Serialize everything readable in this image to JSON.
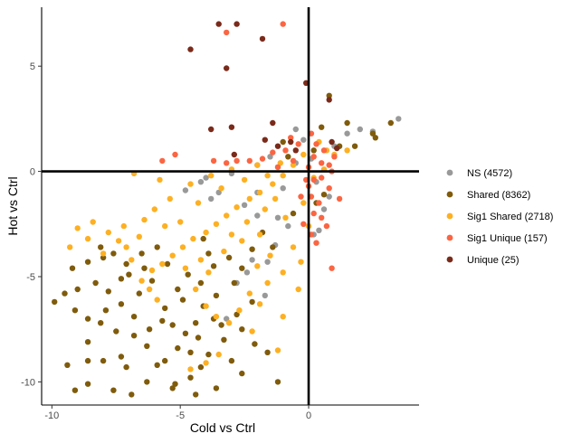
{
  "chart_data": {
    "type": "scatter",
    "xlabel": "Cold vs Ctrl",
    "ylabel": "Hot vs Ctrl",
    "xlim": [
      -10.4,
      4.3
    ],
    "ylim": [
      -11.1,
      7.8
    ],
    "x_ticks": [
      -10,
      -5,
      0
    ],
    "y_ticks": [
      -10,
      -5,
      0,
      5
    ],
    "x_tick_labels": [
      "-10",
      "-5",
      "0"
    ],
    "y_tick_labels": [
      "-10",
      "-5",
      "0",
      "5"
    ],
    "reference_lines": {
      "x": 0,
      "y": 0
    },
    "grid": false,
    "legend_position": "right",
    "series": [
      {
        "name": "NS (4572)",
        "color": "#999999",
        "points": [
          [
            3.5,
            2.5
          ],
          [
            2.5,
            1.9
          ],
          [
            2.0,
            2.0
          ],
          [
            1.5,
            1.8
          ],
          [
            1.0,
            1.2
          ],
          [
            -0.2,
            1.5
          ],
          [
            -0.5,
            2.0
          ],
          [
            0.1,
            0.6
          ],
          [
            0.3,
            -0.5
          ],
          [
            -0.5,
            0.4
          ],
          [
            -1.2,
            0.2
          ],
          [
            -1.5,
            0.7
          ],
          [
            -2.0,
            0.3
          ],
          [
            -3.0,
            -0.1
          ],
          [
            -4.0,
            -0.3
          ],
          [
            -4.8,
            -0.9
          ],
          [
            -3.5,
            -1.0
          ],
          [
            -2.5,
            -1.6
          ],
          [
            -2.0,
            -2.1
          ],
          [
            -1.2,
            -2.2
          ],
          [
            -0.8,
            -2.6
          ],
          [
            0.2,
            -3.0
          ],
          [
            0.4,
            -2.8
          ],
          [
            0.8,
            -1.2
          ],
          [
            -1.3,
            -3.5
          ],
          [
            -2.2,
            -4.2
          ],
          [
            -2.8,
            -5.3
          ],
          [
            -1.7,
            -5.9
          ],
          [
            -3.2,
            -7.0
          ],
          [
            -1.6,
            -4.3
          ],
          [
            -2.4,
            -4.8
          ],
          [
            -4.2,
            -0.5
          ],
          [
            -3.8,
            -1.3
          ],
          [
            -2.0,
            -1.0
          ],
          [
            -1.0,
            -0.8
          ],
          [
            0.6,
            -1.8
          ]
        ]
      },
      {
        "name": "Shared (8362)",
        "color": "#7f5b0c",
        "points": [
          [
            2.5,
            1.8
          ],
          [
            1.8,
            1.2
          ],
          [
            1.2,
            1.2
          ],
          [
            1.5,
            2.3
          ],
          [
            0.8,
            3.6
          ],
          [
            0.5,
            2.1
          ],
          [
            2.6,
            1.6
          ],
          [
            3.2,
            2.3
          ],
          [
            0.2,
            1.0
          ],
          [
            -1.0,
            1.4
          ],
          [
            -0.8,
            0.7
          ],
          [
            -1.8,
            -2.9
          ],
          [
            -2.2,
            -3.7
          ],
          [
            -2.6,
            -4.6
          ],
          [
            -2.9,
            -5.3
          ],
          [
            -3.6,
            -5.9
          ],
          [
            -3.4,
            -7.3
          ],
          [
            -2.6,
            -7.5
          ],
          [
            -3.3,
            -8.0
          ],
          [
            -3.9,
            -8.7
          ],
          [
            -4.2,
            -9.3
          ],
          [
            -4.6,
            -9.8
          ],
          [
            -5.3,
            -10.3
          ],
          [
            -6.3,
            -10.0
          ],
          [
            -7.6,
            -10.4
          ],
          [
            -8.6,
            -10.1
          ],
          [
            -9.4,
            -9.2
          ],
          [
            -8.6,
            -9.0
          ],
          [
            -8.0,
            -9.0
          ],
          [
            -7.3,
            -8.8
          ],
          [
            -6.3,
            -8.3
          ],
          [
            -5.6,
            -9.0
          ],
          [
            -5.1,
            -8.4
          ],
          [
            -4.8,
            -7.7
          ],
          [
            -5.3,
            -7.3
          ],
          [
            -4.4,
            -7.2
          ],
          [
            -4.1,
            -6.4
          ],
          [
            -5.6,
            -6.5
          ],
          [
            -6.1,
            -5.2
          ],
          [
            -6.6,
            -5.8
          ],
          [
            -7.1,
            -4.4
          ],
          [
            -7.6,
            -3.9
          ],
          [
            -8.0,
            -4.1
          ],
          [
            -8.6,
            -4.3
          ],
          [
            -9.2,
            -4.6
          ],
          [
            -9.0,
            -5.6
          ],
          [
            -9.5,
            -5.8
          ],
          [
            -8.3,
            -5.3
          ],
          [
            -7.8,
            -5.7
          ],
          [
            -7.3,
            -6.3
          ],
          [
            -6.8,
            -6.9
          ],
          [
            -6.2,
            -7.5
          ],
          [
            -6.8,
            -7.8
          ],
          [
            -7.5,
            -7.6
          ],
          [
            -8.1,
            -7.2
          ],
          [
            -8.6,
            -7.0
          ],
          [
            -9.1,
            -6.6
          ],
          [
            -8.6,
            -8.1
          ],
          [
            -4.7,
            -4.9
          ],
          [
            -4.2,
            -5.3
          ],
          [
            -3.9,
            -3.9
          ],
          [
            -3.1,
            -4.1
          ],
          [
            -5.5,
            -4.4
          ],
          [
            -4.9,
            -6.1
          ],
          [
            -5.1,
            -5.6
          ],
          [
            -4.6,
            -8.6
          ],
          [
            -5.9,
            -9.2
          ],
          [
            -7.1,
            -9.3
          ],
          [
            -6.5,
            -3.9
          ],
          [
            -7.0,
            -4.9
          ],
          [
            -9.9,
            -6.2
          ],
          [
            -8.1,
            -3.6
          ],
          [
            -4.4,
            -10.6
          ],
          [
            -3.0,
            -9.0
          ],
          [
            -2.1,
            -8.2
          ],
          [
            -1.6,
            -8.6
          ],
          [
            -1.2,
            -10.0
          ],
          [
            -2.6,
            -9.6
          ],
          [
            -9.1,
            -10.4
          ],
          [
            -5.2,
            -10.1
          ],
          [
            -6.9,
            -10.6
          ],
          [
            -3.6,
            -10.3
          ],
          [
            -2.8,
            -6.8
          ],
          [
            -3.7,
            -4.5
          ],
          [
            -4.1,
            -3.2
          ],
          [
            -5.9,
            -3.6
          ],
          [
            -6.4,
            -4.6
          ],
          [
            -7.3,
            -5.1
          ],
          [
            -7.9,
            -6.6
          ],
          [
            -5.7,
            -7.1
          ],
          [
            -4.3,
            -7.9
          ],
          [
            -3.7,
            -7.0
          ],
          [
            -2.2,
            -6.2
          ],
          [
            -1.4,
            -3.6
          ],
          [
            -0.6,
            -2.0
          ],
          [
            0.3,
            -1.5
          ],
          [
            0.6,
            -1.1
          ]
        ]
      },
      {
        "name": "Sig1 Shared (2718)",
        "color": "#fdb022",
        "points": [
          [
            -0.2,
            0.8
          ],
          [
            -0.6,
            0.3
          ],
          [
            -1.0,
            -0.2
          ],
          [
            -1.4,
            -0.6
          ],
          [
            -1.9,
            -1.0
          ],
          [
            -2.3,
            -1.3
          ],
          [
            -2.8,
            -1.7
          ],
          [
            -3.2,
            -2.1
          ],
          [
            -3.6,
            -2.5
          ],
          [
            -4.0,
            -2.9
          ],
          [
            -4.5,
            -3.2
          ],
          [
            -4.9,
            -3.6
          ],
          [
            -5.3,
            -4.0
          ],
          [
            -5.7,
            -4.4
          ],
          [
            -6.1,
            -4.7
          ],
          [
            -6.5,
            -5.2
          ],
          [
            -5.6,
            -2.6
          ],
          [
            -6.4,
            -2.3
          ],
          [
            -7.2,
            -2.6
          ],
          [
            -7.8,
            -2.9
          ],
          [
            -8.6,
            -3.2
          ],
          [
            -9.3,
            -3.6
          ],
          [
            -8.0,
            -3.9
          ],
          [
            -7.1,
            -3.6
          ],
          [
            -6.6,
            -3.1
          ],
          [
            -5.0,
            -2.4
          ],
          [
            -4.3,
            -1.5
          ],
          [
            -3.4,
            -0.8
          ],
          [
            -2.5,
            -0.4
          ],
          [
            -1.6,
            -0.2
          ],
          [
            -5.4,
            -1.3
          ],
          [
            -6.0,
            -1.8
          ],
          [
            -4.6,
            -0.6
          ],
          [
            -3.8,
            -0.2
          ],
          [
            -3.0,
            0.1
          ],
          [
            -2.0,
            0.3
          ],
          [
            -1.1,
            0.4
          ],
          [
            -1.3,
            -1.3
          ],
          [
            -0.9,
            -2.2
          ],
          [
            -0.6,
            -3.6
          ],
          [
            -1.0,
            -4.8
          ],
          [
            -1.6,
            -5.3
          ],
          [
            -2.3,
            -5.8
          ],
          [
            -2.7,
            -6.6
          ],
          [
            -3.1,
            -7.2
          ],
          [
            -2.2,
            -7.6
          ],
          [
            -1.9,
            -6.3
          ],
          [
            -1.5,
            -4.0
          ],
          [
            -2.0,
            -4.5
          ],
          [
            -2.6,
            -3.3
          ],
          [
            -3.3,
            -3.8
          ],
          [
            -3.9,
            -4.8
          ],
          [
            -4.4,
            -5.6
          ],
          [
            -4.0,
            -6.4
          ],
          [
            -3.6,
            -6.9
          ],
          [
            -3.5,
            -8.7
          ],
          [
            -4.0,
            -9.1
          ],
          [
            -4.6,
            -9.4
          ],
          [
            -1.0,
            -6.9
          ],
          [
            -1.2,
            -8.5
          ],
          [
            -0.4,
            -5.6
          ],
          [
            -0.3,
            -4.3
          ],
          [
            0.0,
            -2.6
          ],
          [
            -0.2,
            -1.5
          ],
          [
            0.2,
            -0.3
          ],
          [
            0.6,
            0.1
          ],
          [
            0.7,
            1.0
          ],
          [
            1.0,
            0.8
          ],
          [
            0.4,
            1.4
          ],
          [
            1.5,
            1.0
          ],
          [
            -8.4,
            -2.4
          ],
          [
            -9.0,
            -2.7
          ],
          [
            -7.4,
            -3.3
          ],
          [
            -6.9,
            -4.2
          ],
          [
            -6.2,
            -5.6
          ],
          [
            -5.9,
            -6.1
          ],
          [
            -2.4,
            -2.4
          ],
          [
            -1.9,
            -3.0
          ],
          [
            -1.7,
            -1.8
          ],
          [
            -3.0,
            -3.0
          ],
          [
            -4.2,
            -4.2
          ],
          [
            -4.8,
            -4.6
          ],
          [
            -6.8,
            -0.1
          ],
          [
            -5.8,
            -0.4
          ]
        ]
      },
      {
        "name": "Sig1 Unique (157)",
        "color": "#fb6542",
        "points": [
          [
            -1.0,
            7.0
          ],
          [
            -3.2,
            6.6
          ],
          [
            -0.7,
            1.6
          ],
          [
            -0.4,
            1.3
          ],
          [
            -0.9,
            1.0
          ],
          [
            -1.4,
            0.9
          ],
          [
            -1.8,
            0.6
          ],
          [
            -2.3,
            0.5
          ],
          [
            -2.8,
            0.5
          ],
          [
            -3.2,
            0.4
          ],
          [
            -3.7,
            0.5
          ],
          [
            -5.2,
            0.8
          ],
          [
            -5.7,
            0.5
          ],
          [
            0.1,
            1.8
          ],
          [
            0.3,
            1.3
          ],
          [
            0.2,
            0.7
          ],
          [
            0.5,
            0.4
          ],
          [
            0.8,
            0.3
          ],
          [
            0.9,
            0.0
          ],
          [
            0.5,
            -0.3
          ],
          [
            0.2,
            -0.4
          ],
          [
            0.0,
            -0.7
          ],
          [
            0.1,
            -1.2
          ],
          [
            0.4,
            -1.5
          ],
          [
            0.2,
            -2.0
          ],
          [
            0.5,
            -2.2
          ],
          [
            0.7,
            -2.6
          ],
          [
            0.3,
            -3.4
          ],
          [
            0.9,
            -4.6
          ],
          [
            1.2,
            -1.3
          ],
          [
            0.8,
            -0.8
          ],
          [
            -0.3,
            -1.2
          ],
          [
            -0.1,
            -0.4
          ],
          [
            0.6,
            1.0
          ],
          [
            1.0,
            0.7
          ],
          [
            0.0,
            0.2
          ],
          [
            -0.6,
            0.5
          ],
          [
            -1.2,
            0.2
          ],
          [
            -0.2,
            -2.5
          ],
          [
            0.1,
            -3.0
          ]
        ]
      },
      {
        "name": "Unique (25)",
        "color": "#7a2a1a",
        "points": [
          [
            -3.5,
            7.0
          ],
          [
            -2.8,
            7.0
          ],
          [
            -1.8,
            6.3
          ],
          [
            -4.6,
            5.8
          ],
          [
            -3.2,
            4.9
          ],
          [
            -3.0,
            2.1
          ],
          [
            -3.8,
            2.0
          ],
          [
            -1.4,
            2.3
          ],
          [
            -1.7,
            1.5
          ],
          [
            -0.7,
            1.4
          ],
          [
            -0.5,
            1.0
          ],
          [
            -2.9,
            0.8
          ],
          [
            0.9,
            1.4
          ],
          [
            1.1,
            1.1
          ],
          [
            0.8,
            3.4
          ],
          [
            -0.1,
            4.2
          ],
          [
            -1.2,
            1.2
          ]
        ]
      }
    ]
  }
}
